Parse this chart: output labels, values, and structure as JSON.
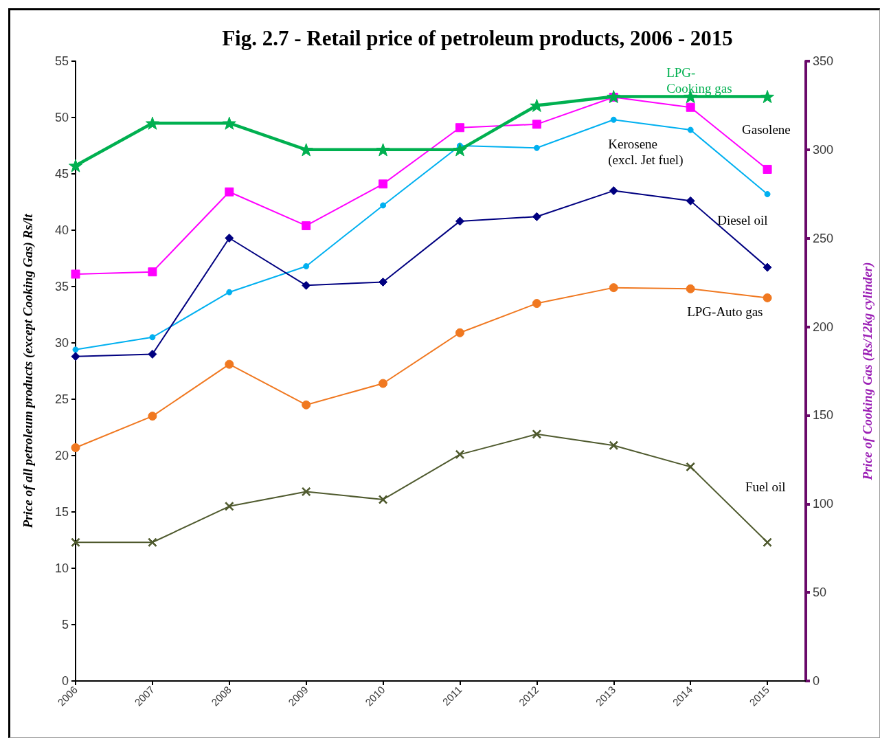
{
  "chart_data": {
    "type": "line",
    "title": "Fig. 2.7 - Retail price of petroleum products, 2006 - 2015",
    "ylabel": "Price of all petroleum products (except Cooking Gas) Rs/lt",
    "y2label": "Price of Cooking Gas (Rs/12kg cylinder)",
    "x": [
      2006,
      2007,
      2008,
      2009,
      2010,
      2011,
      2012,
      2013,
      2014,
      2015
    ],
    "xlim": [
      2006,
      2015.5
    ],
    "xticks": [
      2006,
      2007,
      2008,
      2009,
      2010,
      2011,
      2012,
      2013,
      2014,
      2015
    ],
    "ylim": [
      0,
      55
    ],
    "yticks": [
      0,
      5,
      10,
      15,
      20,
      25,
      30,
      35,
      40,
      45,
      50,
      55
    ],
    "y2lim": [
      0,
      350
    ],
    "y2ticks": [
      0,
      50,
      100,
      150,
      200,
      250,
      300,
      350
    ],
    "legend": false,
    "grid": false,
    "line_style": "solid",
    "series": [
      {
        "name": "Gasolene",
        "color": "#ff00ff",
        "marker": "square",
        "values": [
          36.1,
          36.3,
          43.4,
          40.4,
          44.1,
          49.1,
          49.4,
          51.8,
          50.9,
          45.4
        ]
      },
      {
        "name": "Kerosene (excl. Jet fuel)",
        "color": "#00b0f0",
        "marker": "circle",
        "values": [
          29.4,
          30.5,
          34.5,
          36.8,
          42.2,
          47.5,
          47.3,
          49.8,
          48.9,
          43.2
        ]
      },
      {
        "name": "Diesel oil",
        "color": "#000080",
        "marker": "diamond",
        "values": [
          28.8,
          29.0,
          39.3,
          35.1,
          35.4,
          40.8,
          41.2,
          43.5,
          42.6,
          36.7
        ]
      },
      {
        "name": "LPG-Auto gas",
        "color": "#f07820",
        "marker": "circle",
        "values": [
          20.7,
          23.5,
          28.1,
          24.5,
          26.4,
          30.9,
          33.5,
          34.9,
          34.8,
          34.0
        ]
      },
      {
        "name": "Fuel oil",
        "color": "#4f5a2e",
        "marker": "cross",
        "values": [
          12.3,
          12.3,
          15.5,
          16.8,
          16.1,
          20.1,
          21.9,
          20.9,
          19.0,
          12.3
        ]
      },
      {
        "name": "LPG-Cooking gas",
        "color": "#00b050",
        "marker": "star",
        "axis": "y2",
        "values": [
          291,
          315,
          315,
          300,
          300,
          300,
          325,
          330,
          330,
          330
        ]
      }
    ]
  }
}
